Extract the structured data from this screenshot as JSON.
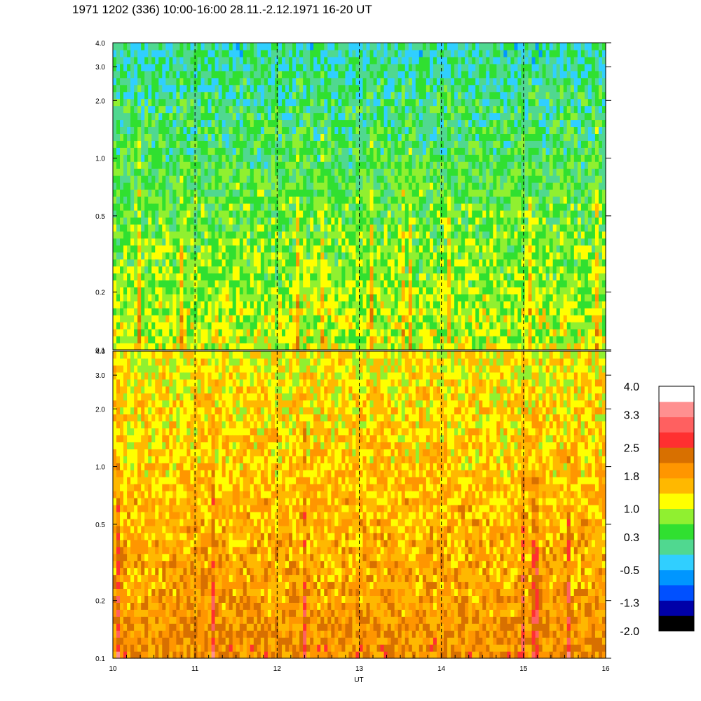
{
  "title": "1971 1202 (336) 10:00-16:00 28.11.-2.12.1971  16-20 UT",
  "chart_data": [
    {
      "type": "heatmap",
      "panel": "top",
      "x": {
        "label": "",
        "range": [
          10,
          16
        ],
        "ticks": []
      },
      "y": {
        "label": "",
        "scale": "log",
        "range": [
          0.1,
          4.0
        ],
        "ticks": [
          0.1,
          0.2,
          0.5,
          1.0,
          2.0,
          3.0,
          4.0
        ],
        "tick_labels": [
          "0.1",
          "0.2",
          "0.5",
          "1.0",
          "2.0",
          "3.0",
          "4.0"
        ]
      },
      "dashed_vlines": [
        11,
        12,
        13,
        14,
        15
      ],
      "description_levels": {
        "low_freq": 1.0,
        "high_freq": 0.0
      }
    },
    {
      "type": "heatmap",
      "panel": "bottom",
      "x": {
        "label": "UT",
        "range": [
          10,
          16
        ],
        "ticks": [
          10,
          11,
          12,
          13,
          14,
          15,
          16
        ],
        "tick_labels": [
          "10",
          "11",
          "12",
          "13",
          "14",
          "15",
          "16"
        ]
      },
      "y": {
        "label": "",
        "scale": "log",
        "range": [
          0.1,
          4.0
        ],
        "ticks": [
          0.1,
          0.2,
          0.5,
          1.0,
          2.0,
          3.0,
          4.0
        ],
        "tick_labels": [
          "0.1",
          "0.2",
          "0.5",
          "1.0",
          "2.0",
          "3.0",
          "4.0"
        ]
      },
      "dashed_vlines": [
        11,
        12,
        13,
        14,
        15
      ],
      "description_levels": {
        "low_freq": 2.0,
        "high_freq": 1.2
      }
    }
  ],
  "colorbar": {
    "range": [
      -2.0,
      4.0
    ],
    "tick_values": [
      4.0,
      3.3,
      2.5,
      1.8,
      1.0,
      0.3,
      -0.5,
      -1.3,
      -2.0
    ],
    "tick_labels": [
      "4.0",
      "3.3",
      "2.5",
      "1.8",
      "1.0",
      "0.3",
      "-0.5",
      "-1.3",
      "-2.0"
    ],
    "colors": [
      "#000000",
      "#0000a8",
      "#0050ff",
      "#0096ff",
      "#30cfff",
      "#50d890",
      "#30e030",
      "#90f030",
      "#ffff00",
      "#ffb800",
      "#ff9600",
      "#d87000",
      "#ff3030",
      "#ff6060",
      "#ff9090",
      "#ffffff"
    ]
  }
}
